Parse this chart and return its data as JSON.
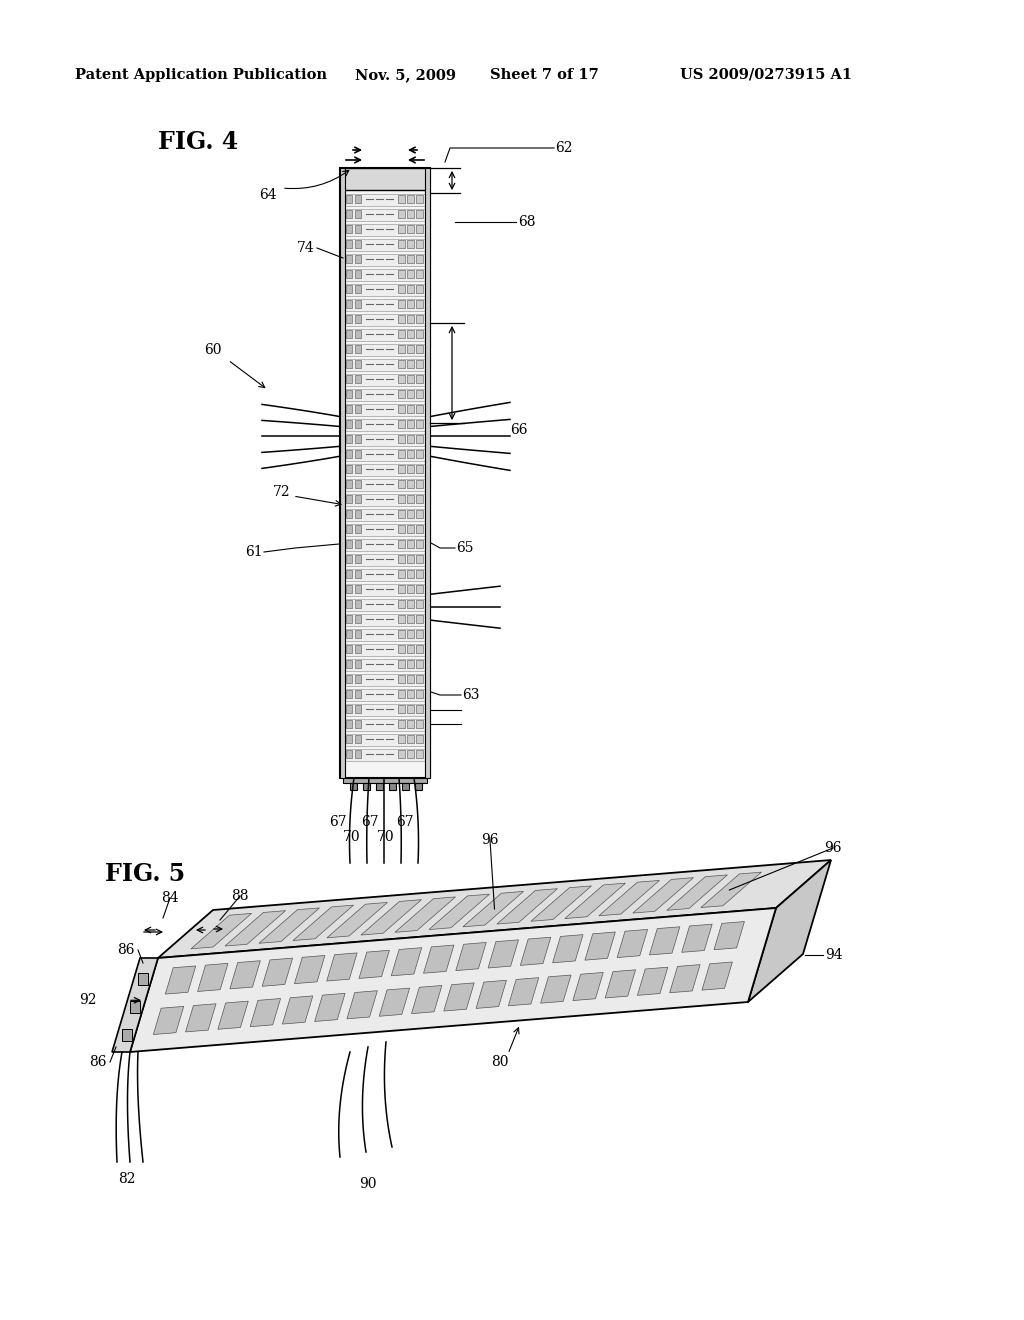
{
  "bg_color": "#ffffff",
  "header_text": "Patent Application Publication",
  "header_date": "Nov. 5, 2009",
  "header_sheet": "Sheet 7 of 17",
  "header_patent": "US 2009/0273915 A1",
  "fig4_label": "FIG. 4",
  "fig5_label": "FIG. 5",
  "line_color": "#000000",
  "fill_light": "#f0f0f0",
  "fill_mid": "#d8d8d8",
  "fill_dark": "#b0b0b0"
}
